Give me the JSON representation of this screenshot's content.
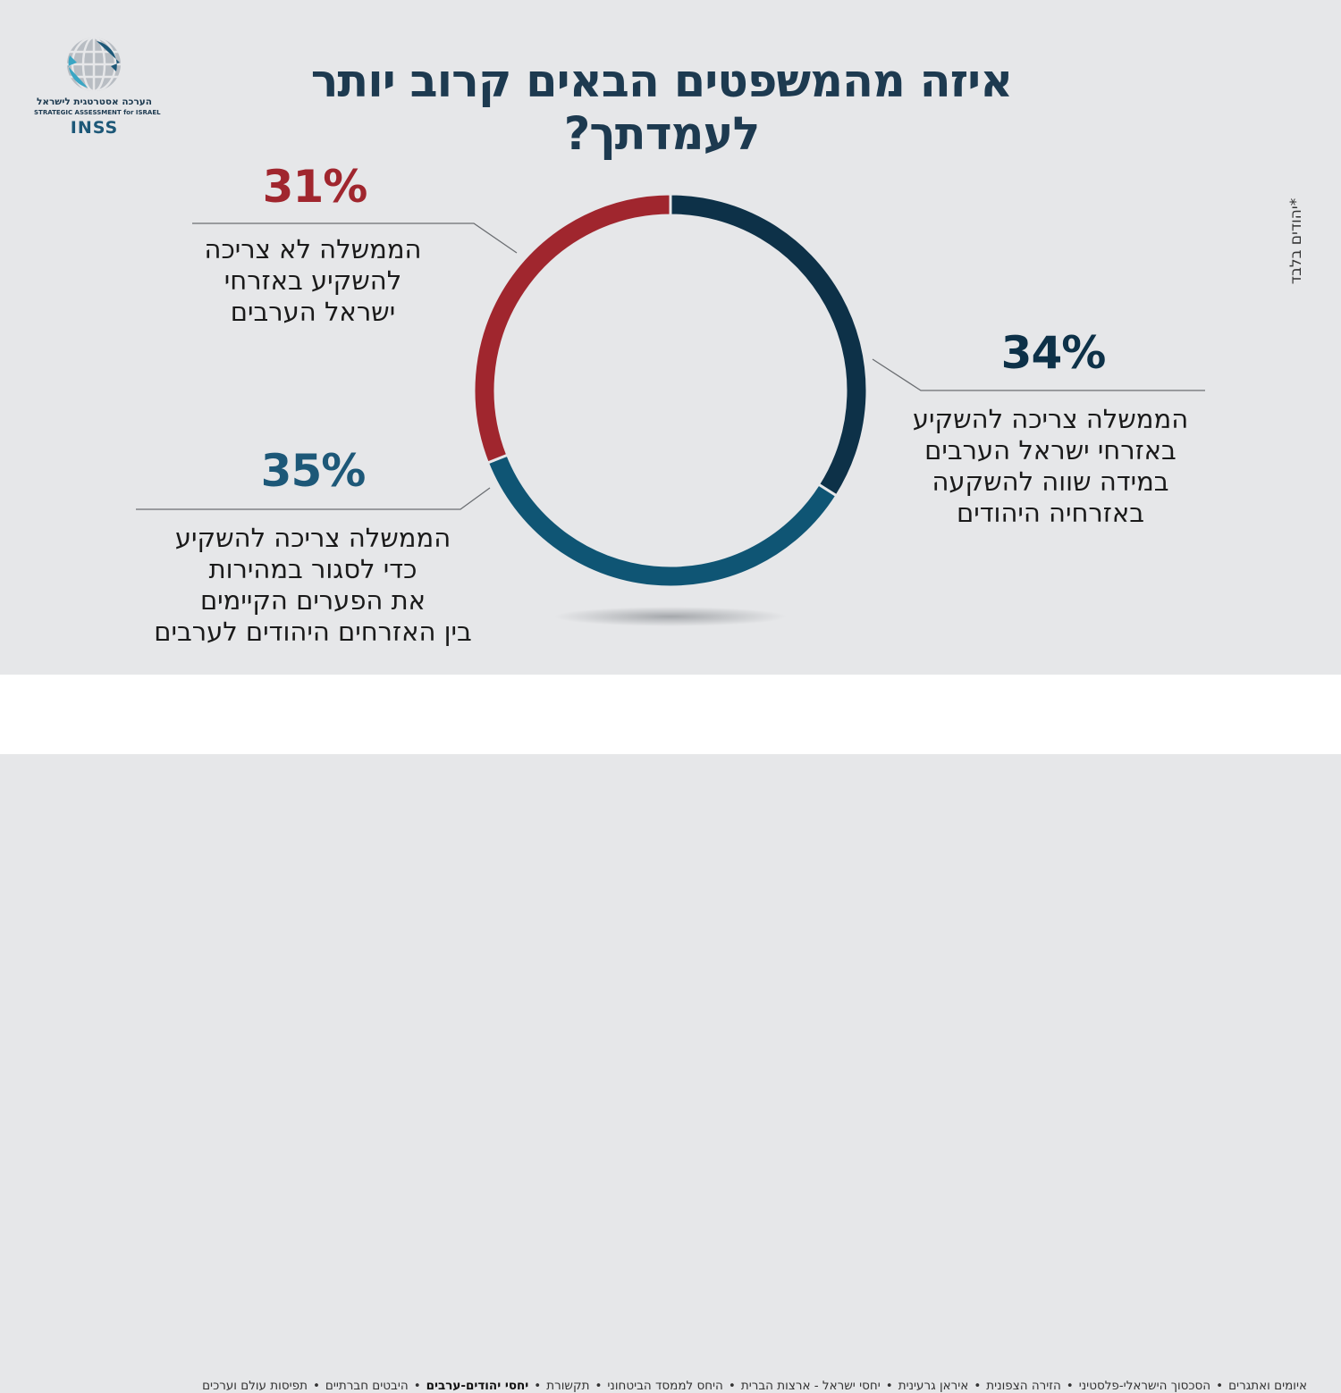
{
  "logo": {
    "hebrew": "הערכה אסטרטגית לישראל",
    "english": "STRATEGIC ASSESSMENT for ISRAEL",
    "brand": "INSS"
  },
  "title": "איזה מהמשפטים הבאים קרוב יותר לעמדתך?",
  "note": "*יהודים בלבד",
  "chart_data": {
    "type": "pie",
    "style": "donut",
    "title": "איזה מהמשפטים הבאים קרוב יותר לעמדתך?",
    "slices": [
      {
        "value": 34,
        "label": "34%",
        "color": "#0d3148",
        "text": [
          "הממשלה צריכה להשקיע",
          "באזרחי ישראל הערבים",
          "במידה שווה להשקעה",
          "באזרחיה היהודים"
        ]
      },
      {
        "value": 35,
        "label": "35%",
        "color": "#0f5574",
        "text": [
          "הממשלה צריכה להשקיע",
          "כדי לסגור במהירות",
          "את הפערים הקיימים",
          "בין האזרחים היהודים לערבים"
        ]
      },
      {
        "value": 31,
        "label": "31%",
        "color": "#a0262e",
        "text": [
          "הממשלה לא צריכה",
          "להשקיע באזרחי",
          "ישראל הערבים"
        ]
      }
    ]
  },
  "footer": {
    "topics": [
      "איומים ואתגרים",
      "הסכסוך הישראלי-פלסטיני",
      "הזירה הצפונית",
      "איראן גרעינית",
      "יחסי ישראל - ארצות הברית",
      "היחס לממסד הביטחוני",
      "תקשורת",
      "יחסי יהודים-ערבים",
      "היבטים חברתיים",
      "תפיסות עולם וערכים"
    ],
    "active_index": 7,
    "separator": "•"
  }
}
